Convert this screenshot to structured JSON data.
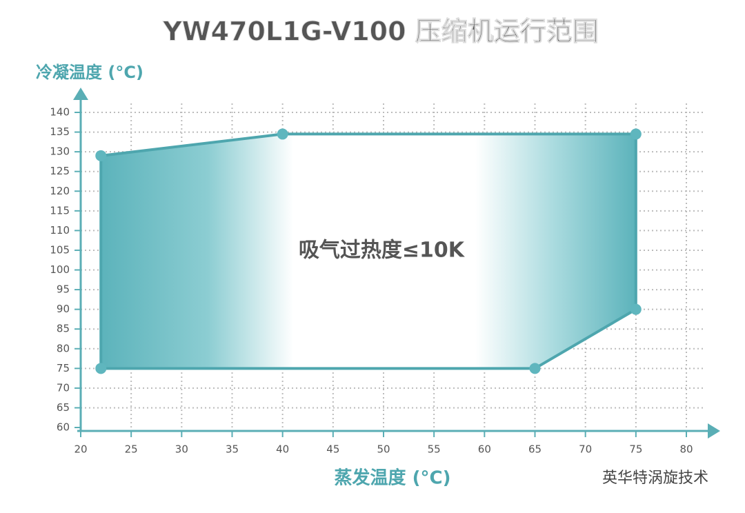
{
  "chart_data": {
    "type": "area",
    "title": "YW470L1G-V100 压缩机运行范围",
    "x_label": "蒸发温度 (°C)",
    "y_label": "冷凝温度 (°C)",
    "annotation": "吸气过热度≤10K",
    "watermark": "英华特涡旋技术",
    "x": [
      22,
      40,
      75,
      75,
      65,
      22
    ],
    "values": [
      129,
      134.5,
      134.5,
      90,
      75,
      75
    ],
    "color": "#4ea6ae",
    "xlim": [
      20,
      80
    ],
    "xticks": [
      20,
      25,
      30,
      35,
      40,
      45,
      50,
      55,
      60,
      65,
      70,
      75,
      80
    ],
    "ylim": [
      60,
      140
    ],
    "yticks": [
      60,
      65,
      70,
      75,
      80,
      85,
      90,
      95,
      100,
      105,
      110,
      115,
      120,
      125,
      130,
      135,
      140
    ],
    "grid": true
  }
}
